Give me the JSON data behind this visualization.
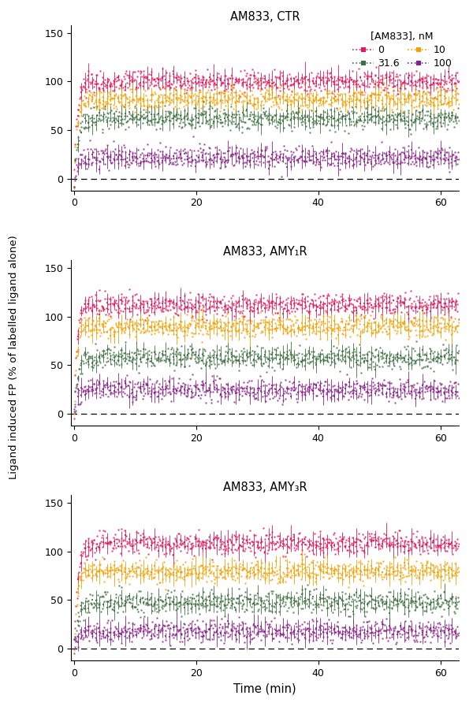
{
  "titles": [
    "AM833, CTR",
    "AM833, AMY₁R",
    "AM833, AMY₃R"
  ],
  "legend_title": "[AM833], nM",
  "legend_labels": [
    "0",
    "10",
    "31.6",
    "100"
  ],
  "colors": [
    "#E0185A",
    "#F5A000",
    "#3D7040",
    "#882288"
  ],
  "xlabel": "Time (min)",
  "ylabel": "Ligand induced FP (% of labelled ligand alone)",
  "ylim": [
    -12,
    158
  ],
  "xlim": [
    -0.5,
    63
  ],
  "yticks": [
    0,
    50,
    100,
    150
  ],
  "xticks": [
    0,
    20,
    40,
    60
  ],
  "plateau_CTR": [
    100,
    82,
    62,
    22
  ],
  "plateau_AMY1R": [
    112,
    90,
    58,
    25
  ],
  "plateau_AMY3R": [
    108,
    80,
    48,
    18
  ],
  "rise_rate_CTR": [
    1.8,
    2.0,
    1.5,
    1.5
  ],
  "rise_rate_AMY1R": [
    2.2,
    2.5,
    1.8,
    1.8
  ],
  "rise_rate_AMY3R": [
    1.8,
    2.0,
    1.5,
    1.5
  ],
  "noise_scale": 5.5,
  "error_scale": 7.5,
  "n_points": 630,
  "err_every": 6,
  "figsize": [
    6.0,
    9.06
  ],
  "dpi": 100
}
